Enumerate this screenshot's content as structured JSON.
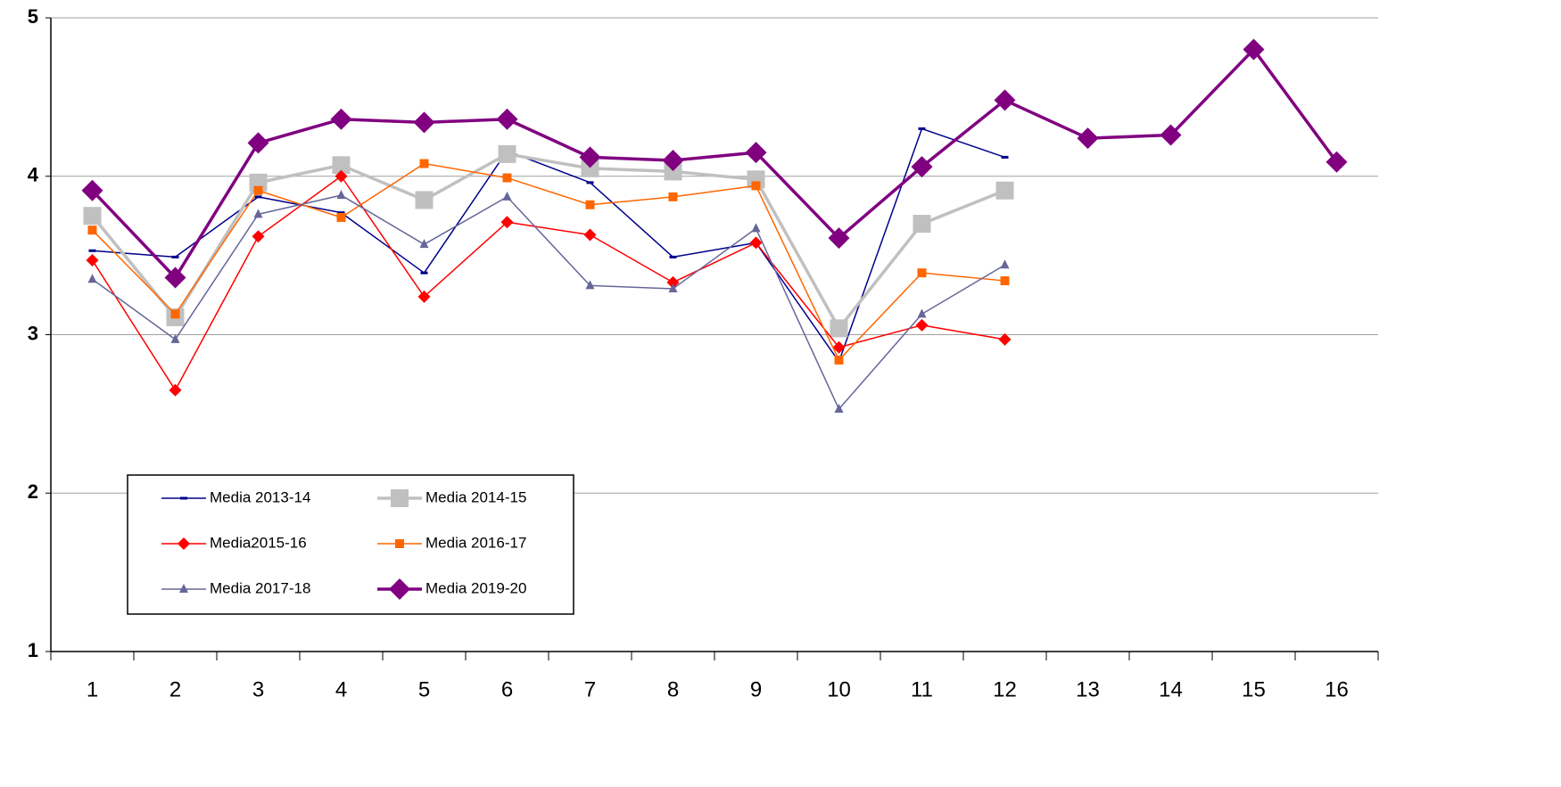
{
  "chart_data": {
    "type": "line",
    "categories": [
      "1",
      "2",
      "3",
      "4",
      "5",
      "6",
      "7",
      "8",
      "9",
      "10",
      "11",
      "12",
      "13",
      "14",
      "15",
      "16"
    ],
    "ylim": [
      1,
      5
    ],
    "yticks": [
      1,
      2,
      3,
      4,
      5
    ],
    "grid": true,
    "legend": "lower-left",
    "series": [
      {
        "name": "Media 2013-14",
        "color": "#00008b",
        "marker": "dash",
        "line_width": 1.5,
        "values": [
          3.53,
          3.49,
          3.87,
          3.77,
          3.39,
          4.16,
          3.96,
          3.49,
          3.58,
          2.83,
          4.3,
          4.12,
          null,
          null,
          null,
          null
        ]
      },
      {
        "name": "Media 2014-15",
        "color": "#c0c0c0",
        "marker": "square",
        "line_width": 3.5,
        "values": [
          3.75,
          3.11,
          3.96,
          4.07,
          3.85,
          4.14,
          4.05,
          4.03,
          3.98,
          3.04,
          3.7,
          3.91,
          null,
          null,
          null,
          null
        ]
      },
      {
        "name": "Media2015-16",
        "color": "#ff0000",
        "marker": "diamond",
        "line_width": 1.5,
        "values": [
          3.47,
          2.65,
          3.62,
          4.0,
          3.24,
          3.71,
          3.63,
          3.33,
          3.58,
          2.92,
          3.06,
          2.97,
          null,
          null,
          null,
          null
        ]
      },
      {
        "name": "Media 2016-17",
        "color": "#ff6600",
        "marker": "square",
        "line_width": 1.5,
        "values": [
          3.66,
          3.13,
          3.91,
          3.74,
          4.08,
          3.99,
          3.82,
          3.87,
          3.94,
          2.84,
          3.39,
          3.34,
          null,
          null,
          null,
          null
        ]
      },
      {
        "name": "Media 2017-18",
        "color": "#666699",
        "marker": "triangle",
        "line_width": 1.5,
        "values": [
          3.35,
          2.97,
          3.76,
          3.88,
          3.57,
          3.87,
          3.31,
          3.29,
          3.67,
          2.53,
          3.13,
          3.44,
          null,
          null,
          null,
          null
        ]
      },
      {
        "name": "Media 2019-20",
        "color": "#800080",
        "marker": "diamond",
        "line_width": 3.5,
        "values": [
          3.91,
          3.36,
          4.21,
          4.36,
          4.34,
          4.36,
          4.12,
          4.1,
          4.15,
          3.61,
          4.06,
          4.48,
          4.24,
          4.26,
          4.8,
          4.09
        ]
      }
    ]
  }
}
